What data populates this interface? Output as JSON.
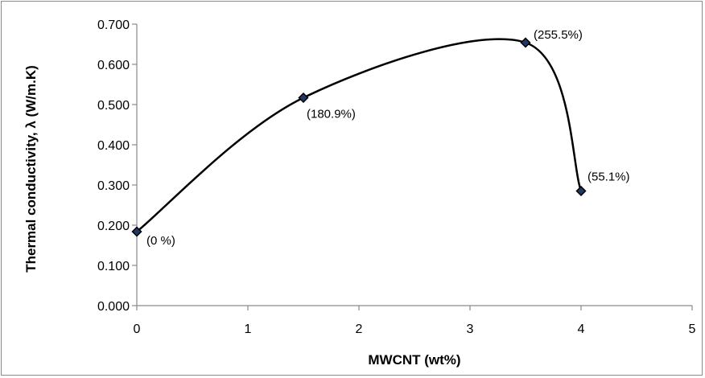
{
  "chart_data": {
    "type": "scatter",
    "title": "",
    "xlabel": "MWCNT (wt%)",
    "ylabel": "Thermal conductivity, λ (W/m.K)",
    "xlim": [
      0,
      5
    ],
    "ylim": [
      0,
      0.7
    ],
    "x_ticks": [
      "0",
      "1",
      "2",
      "3",
      "4",
      "5"
    ],
    "y_ticks": [
      "0.000",
      "0.100",
      "0.200",
      "0.300",
      "0.400",
      "0.500",
      "0.600",
      "0.700"
    ],
    "grid": false,
    "legend": "none",
    "line": "smooth",
    "series": [
      {
        "points": [
          {
            "x": 0,
            "y": 0.184,
            "label": "(0 %)"
          },
          {
            "x": 1.5,
            "y": 0.517,
            "label": "(180.9%)"
          },
          {
            "x": 3.5,
            "y": 0.654,
            "label": "(255.5%)"
          },
          {
            "x": 4,
            "y": 0.285,
            "label": "(55.1%)"
          }
        ]
      }
    ],
    "colors": {
      "line": "#000000",
      "marker_fill": "#1f3864",
      "marker_edge": "#000000",
      "axis": "#8a8a8a"
    }
  }
}
